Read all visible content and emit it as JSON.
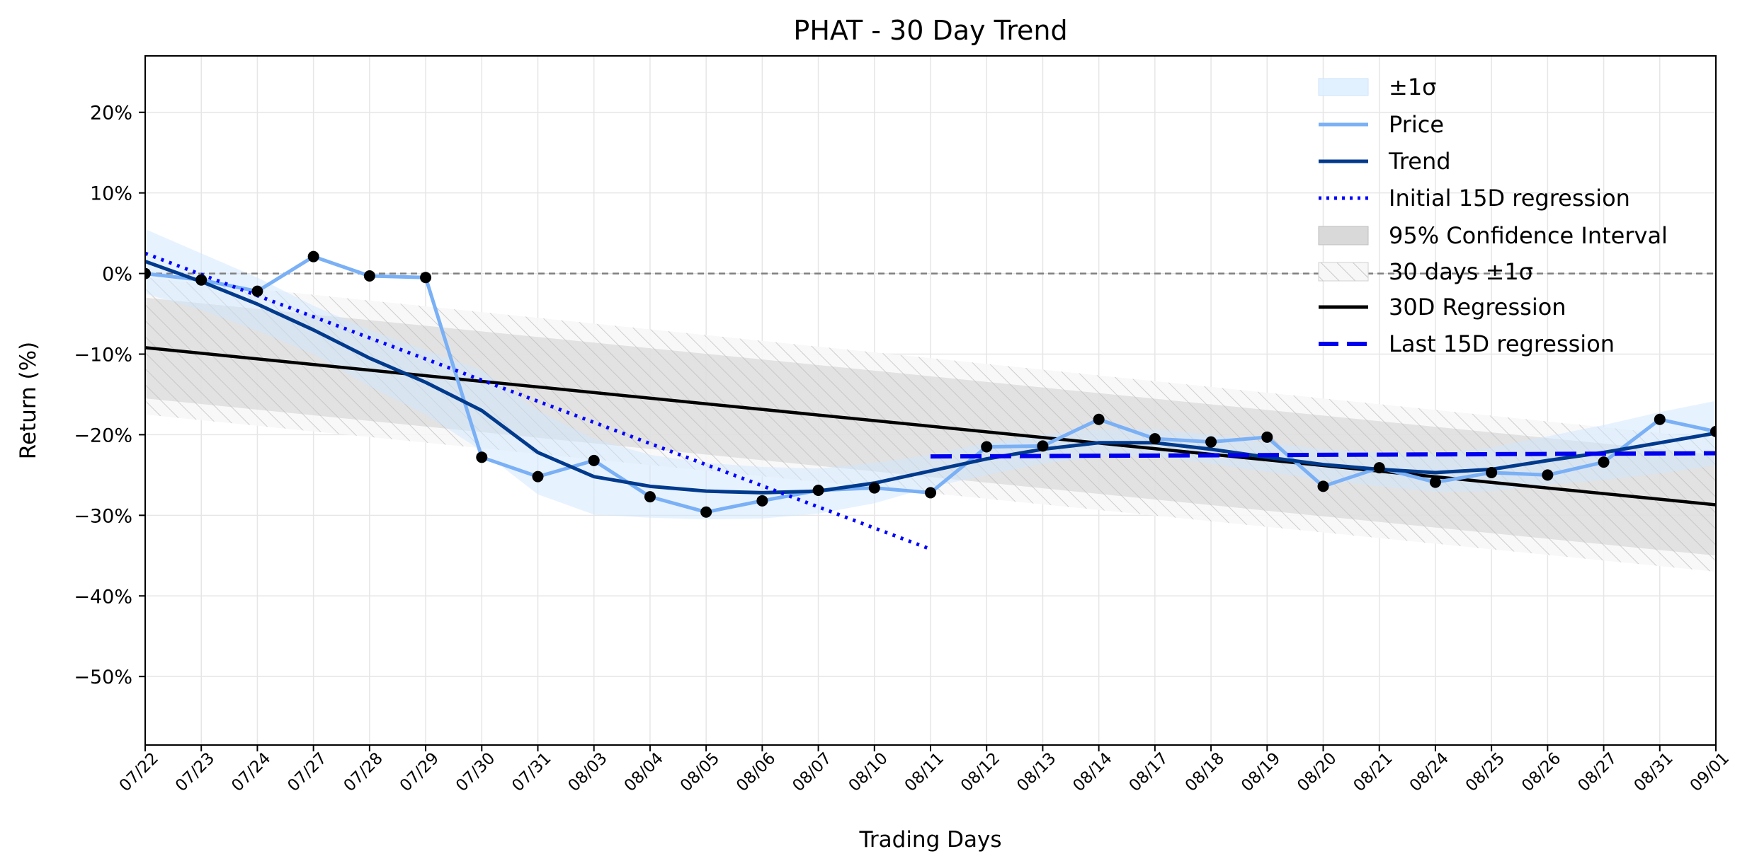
{
  "chart_data": {
    "type": "line",
    "title": "PHAT - 30 Day Trend",
    "xlabel": "Trading Days",
    "ylabel": "Return (%)",
    "ylim": [
      -58.5,
      27
    ],
    "yticks": [
      20,
      10,
      0,
      -10,
      -20,
      -30,
      -40,
      -50
    ],
    "ytick_labels": [
      "20%",
      "10%",
      "0%",
      "−10%",
      "−20%",
      "−30%",
      "−40%",
      "−50%"
    ],
    "grid": true,
    "legend_position": "top-right",
    "categories": [
      "07/22",
      "07/23",
      "07/24",
      "07/27",
      "07/28",
      "07/29",
      "07/30",
      "07/31",
      "08/03",
      "08/04",
      "08/05",
      "08/06",
      "08/07",
      "08/10",
      "08/11",
      "08/12",
      "08/13",
      "08/14",
      "08/17",
      "08/18",
      "08/19",
      "08/20",
      "08/21",
      "08/24",
      "08/25",
      "08/26",
      "08/27",
      "08/31",
      "09/01"
    ],
    "series": [
      {
        "name": "Price",
        "color": "#7ab0f5",
        "values": [
          0.0,
          -0.8,
          -2.2,
          2.1,
          -0.3,
          -0.5,
          -22.8,
          -25.2,
          -23.2,
          -27.7,
          -29.6,
          -28.2,
          -26.9,
          -26.6,
          -27.2,
          -21.5,
          -21.4,
          -18.1,
          -20.5,
          -20.9,
          -20.3,
          -26.4,
          -24.1,
          -25.9,
          -24.7,
          -25.0,
          -23.4,
          -18.1,
          -19.6
        ]
      },
      {
        "name": "Trend",
        "color": "#003a8c",
        "values": [
          1.5,
          -1.0,
          -3.8,
          -7.0,
          -10.5,
          -13.5,
          -17.0,
          -22.2,
          -25.2,
          -26.4,
          -27.0,
          -27.2,
          -27.0,
          -26.0,
          -24.5,
          -23.0,
          -21.8,
          -21.0,
          -21.0,
          -21.8,
          -22.8,
          -23.7,
          -24.3,
          -24.7,
          -24.3,
          -23.2,
          -22.2,
          -21.0,
          -19.8
        ]
      },
      {
        "name": "Initial 15D regression",
        "color": "#0000ff",
        "start": 2.5,
        "end": -34.2
      },
      {
        "name": "30D Regression",
        "color": "#000000",
        "start": -9.2,
        "end": -28.7
      },
      {
        "name": "Last 15D regression",
        "color": "#0000ee",
        "start": -22.7,
        "end": -22.3
      }
    ],
    "sigma_band": {
      "name": "±1σ",
      "upper": [
        5.5,
        2.5,
        -0.5,
        -4.0,
        -7.0,
        -9.5,
        -12.0,
        -17.0,
        -20.5,
        -22.5,
        -23.5,
        -24.0,
        -24.2,
        -23.5,
        -22.5,
        -21.0,
        -20.0,
        -19.3,
        -19.3,
        -20.0,
        -21.0,
        -21.8,
        -22.2,
        -22.3,
        -21.6,
        -20.2,
        -18.8,
        -17.2,
        -15.8
      ],
      "lower": [
        -2.5,
        -4.5,
        -7.1,
        -10.0,
        -14.0,
        -17.5,
        -22.0,
        -27.4,
        -29.9,
        -30.3,
        -30.5,
        -30.4,
        -29.8,
        -28.5,
        -26.5,
        -25.0,
        -23.6,
        -22.7,
        -22.7,
        -23.6,
        -24.6,
        -25.6,
        -26.4,
        -27.1,
        -27.0,
        -26.2,
        -25.6,
        -24.8,
        -23.8
      ]
    },
    "confidence_band": {
      "name": "95% Confidence Interval",
      "upper_start": -3.0,
      "upper_end": -22.5,
      "lower_start": -15.5,
      "lower_end": -35.0
    },
    "days_sigma_band": {
      "name": "30 days ±1σ",
      "upper_start": -0.5,
      "upper_end": -20.5,
      "lower_start": -17.5,
      "lower_end": -37.0
    },
    "zero_line": 0,
    "legend": [
      "±1σ",
      "Price",
      "Trend",
      "Initial 15D regression",
      "95% Confidence Interval",
      "30 days ±1σ",
      "30D Regression",
      "Last 15D regression"
    ]
  }
}
